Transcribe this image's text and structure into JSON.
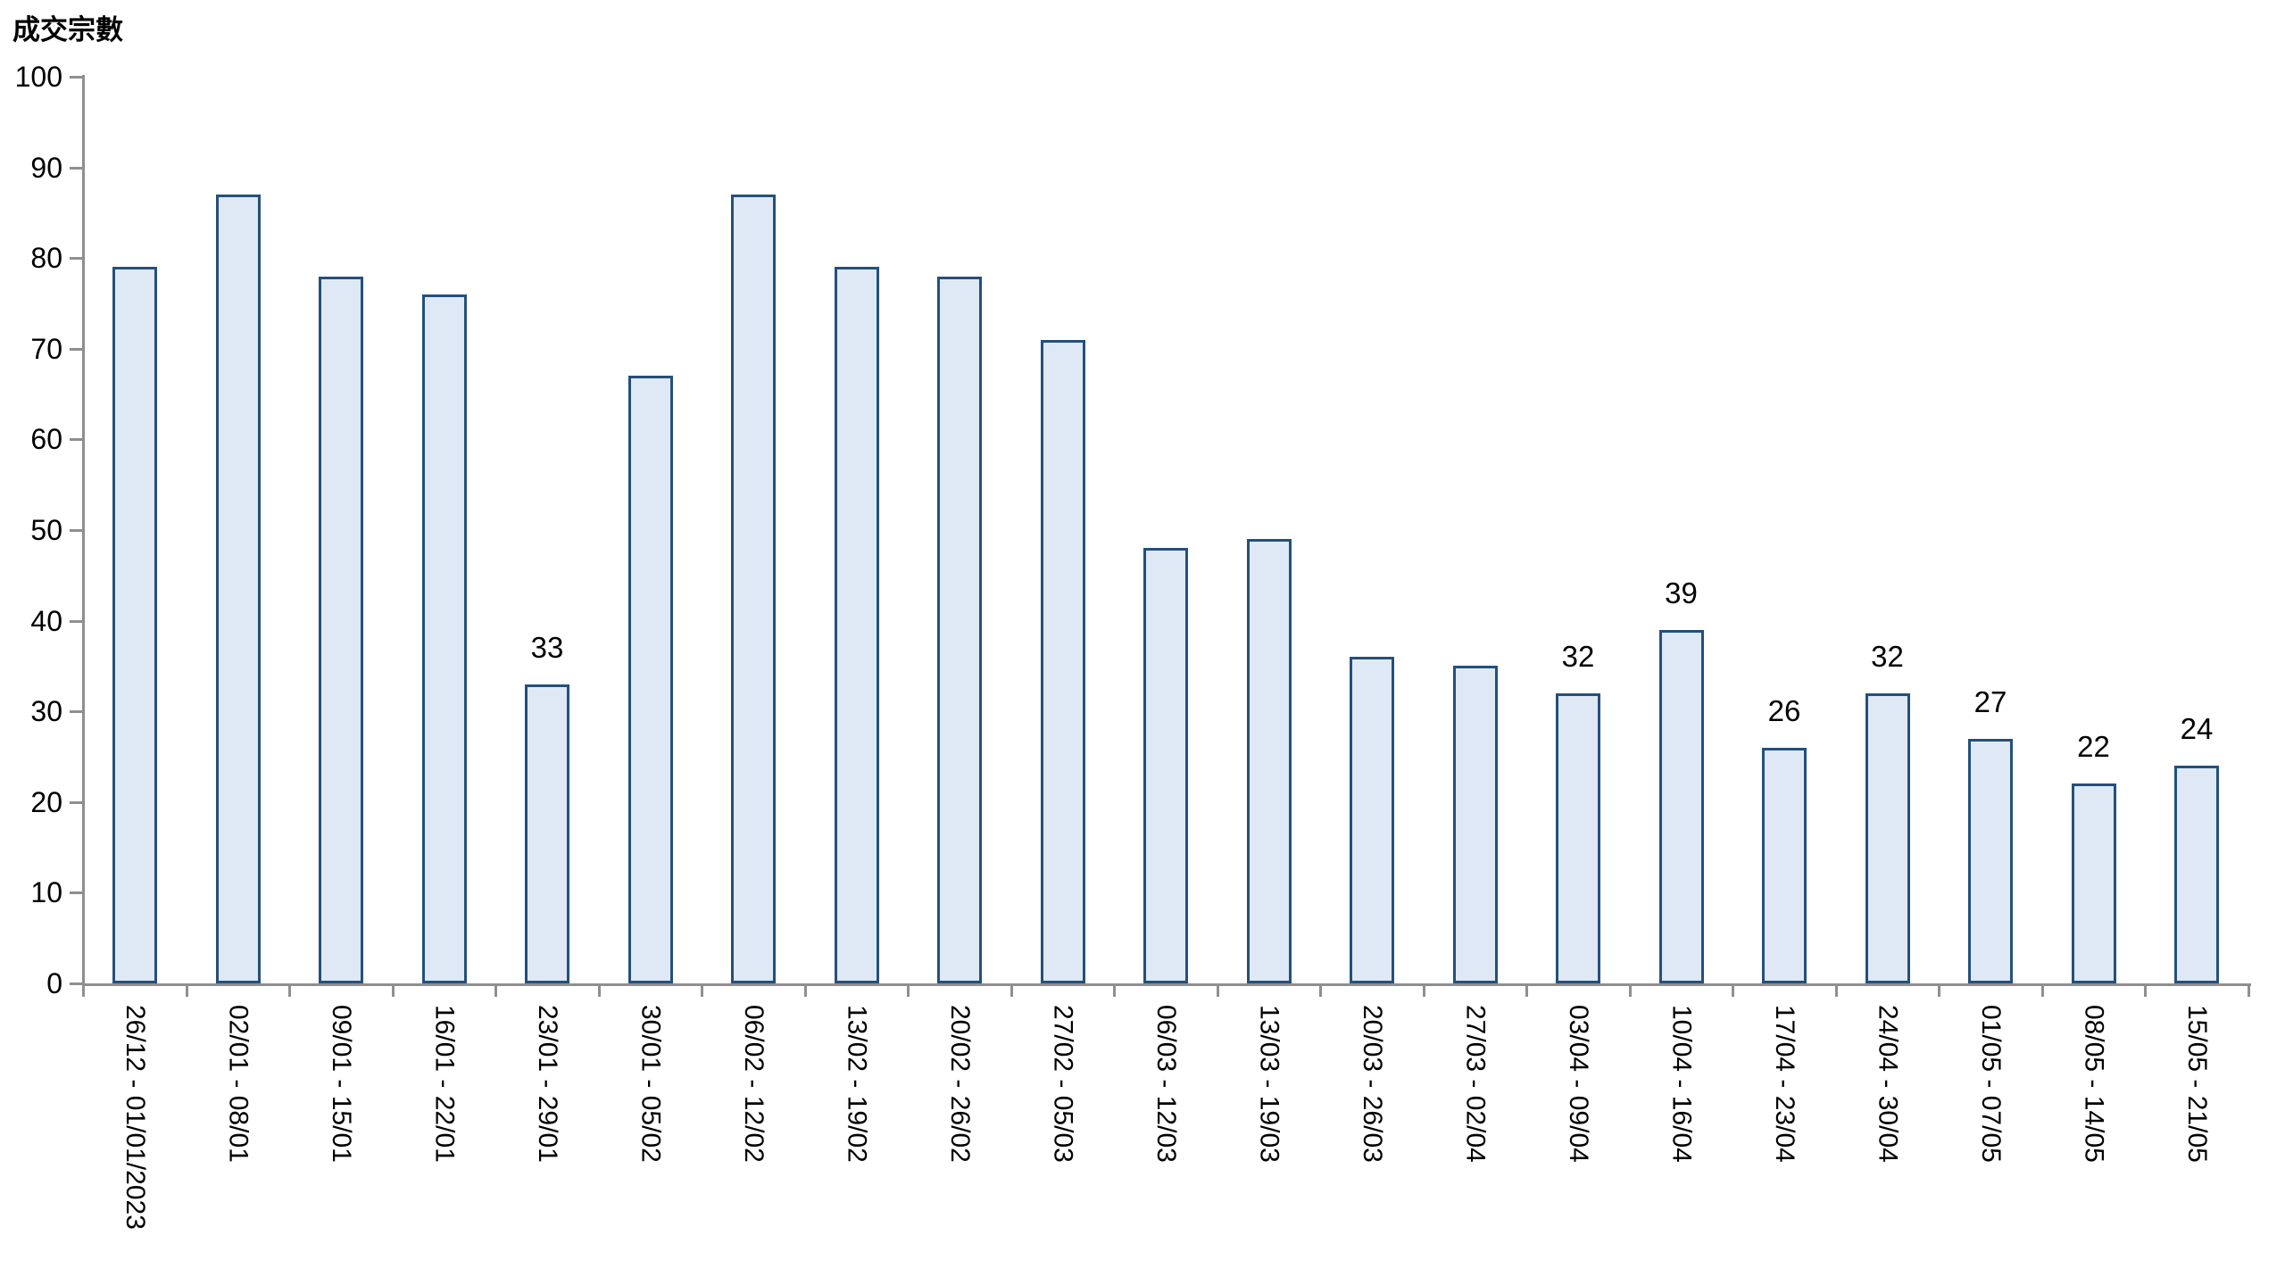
{
  "title": "成交宗數",
  "chart_data": {
    "type": "bar",
    "title": "成交宗數",
    "ylabel": "成交宗數",
    "xlabel": "",
    "categories": [
      "26/12 - 01/01/2023",
      "02/01 - 08/01",
      "09/01 - 15/01",
      "16/01 - 22/01",
      "23/01 - 29/01",
      "30/01 - 05/02",
      "06/02 - 12/02",
      "13/02 - 19/02",
      "20/02 - 26/02",
      "27/02 - 05/03",
      "06/03 - 12/03",
      "13/03 - 19/03",
      "20/03 - 26/03",
      "27/03 - 02/04",
      "03/04 - 09/04",
      "10/04 - 16/04",
      "17/04 - 23/04",
      "24/04 - 30/04",
      "01/05 - 07/05",
      "08/05 - 14/05",
      "15/05 - 21/05"
    ],
    "values": [
      79,
      87,
      78,
      76,
      33,
      67,
      87,
      79,
      78,
      71,
      48,
      49,
      36,
      35,
      32,
      39,
      26,
      32,
      27,
      22,
      24
    ],
    "data_labels": [
      null,
      null,
      null,
      null,
      "33",
      null,
      null,
      null,
      null,
      null,
      null,
      null,
      null,
      null,
      "32",
      "39",
      "26",
      "32",
      "27",
      "22",
      "24"
    ],
    "ylim": [
      0,
      100
    ],
    "ytick_interval": 10,
    "yticks": [
      0,
      10,
      20,
      30,
      40,
      50,
      60,
      70,
      80,
      90,
      100
    ],
    "grid": false,
    "legend": false,
    "bar_fill_color": "#dfe9f5",
    "bar_border_color": "#24507c",
    "axis_color": "#8f8f8f",
    "text_color": "#000000"
  }
}
